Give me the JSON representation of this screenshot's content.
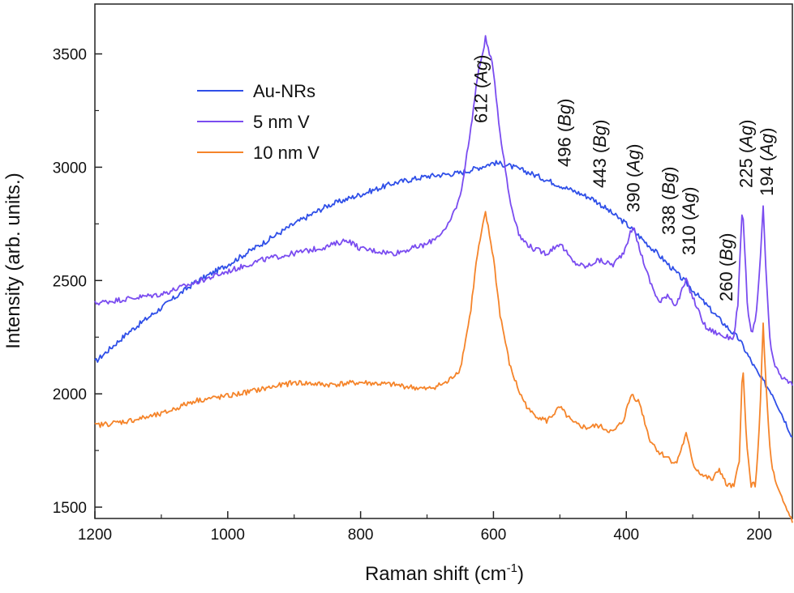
{
  "chart_data": {
    "type": "line",
    "xlabel_main": "Raman shift (cm",
    "xlabel_sup": "-1",
    "xlabel_tail": ")",
    "ylabel": "Intensity (arb. units.)",
    "xlim": [
      1200,
      150
    ],
    "ylim": [
      1450,
      3720
    ],
    "x_ticks": [
      1200,
      1000,
      800,
      600,
      400,
      200
    ],
    "x_tick_labels": [
      "1200",
      "1000",
      "800",
      "600",
      "400",
      "200"
    ],
    "y_ticks": [
      1500,
      2000,
      2500,
      3000,
      3500
    ],
    "y_tick_labels": [
      "1500",
      "2000",
      "2500",
      "3000",
      "3500"
    ],
    "legend_position": "top-left",
    "series": [
      {
        "name": "Au-NRs",
        "color": "#2f4fe8",
        "points": [
          [
            1200,
            2140
          ],
          [
            1150,
            2270
          ],
          [
            1100,
            2380
          ],
          [
            1050,
            2490
          ],
          [
            1000,
            2570
          ],
          [
            950,
            2660
          ],
          [
            900,
            2750
          ],
          [
            850,
            2830
          ],
          [
            800,
            2880
          ],
          [
            750,
            2930
          ],
          [
            700,
            2960
          ],
          [
            650,
            2975
          ],
          [
            620,
            3000
          ],
          [
            600,
            3020
          ],
          [
            580,
            3010
          ],
          [
            550,
            2980
          ],
          [
            500,
            2920
          ],
          [
            450,
            2860
          ],
          [
            400,
            2750
          ],
          [
            350,
            2610
          ],
          [
            310,
            2490
          ],
          [
            260,
            2330
          ],
          [
            230,
            2240
          ],
          [
            200,
            2080
          ],
          [
            180,
            2000
          ],
          [
            150,
            1810
          ]
        ]
      },
      {
        "name": "5 nm V",
        "color": "#7a4cf0",
        "points": [
          [
            1200,
            2400
          ],
          [
            1100,
            2440
          ],
          [
            1000,
            2540
          ],
          [
            950,
            2590
          ],
          [
            900,
            2620
          ],
          [
            850,
            2650
          ],
          [
            820,
            2680
          ],
          [
            800,
            2640
          ],
          [
            750,
            2620
          ],
          [
            700,
            2660
          ],
          [
            670,
            2730
          ],
          [
            650,
            2870
          ],
          [
            635,
            3150
          ],
          [
            625,
            3380
          ],
          [
            612,
            3570
          ],
          [
            600,
            3430
          ],
          [
            590,
            3150
          ],
          [
            575,
            2850
          ],
          [
            560,
            2690
          ],
          [
            540,
            2640
          ],
          [
            520,
            2620
          ],
          [
            500,
            2665
          ],
          [
            480,
            2580
          ],
          [
            460,
            2560
          ],
          [
            443,
            2590
          ],
          [
            420,
            2570
          ],
          [
            405,
            2620
          ],
          [
            390,
            2740
          ],
          [
            380,
            2640
          ],
          [
            365,
            2500
          ],
          [
            350,
            2400
          ],
          [
            338,
            2440
          ],
          [
            325,
            2390
          ],
          [
            310,
            2500
          ],
          [
            295,
            2390
          ],
          [
            280,
            2290
          ],
          [
            265,
            2270
          ],
          [
            250,
            2250
          ],
          [
            238,
            2250
          ],
          [
            232,
            2400
          ],
          [
            225,
            2840
          ],
          [
            218,
            2400
          ],
          [
            212,
            2270
          ],
          [
            205,
            2320
          ],
          [
            198,
            2600
          ],
          [
            194,
            2820
          ],
          [
            189,
            2500
          ],
          [
            183,
            2200
          ],
          [
            175,
            2110
          ],
          [
            165,
            2070
          ],
          [
            150,
            2040
          ]
        ]
      },
      {
        "name": "10 nm V",
        "color": "#f5842a",
        "points": [
          [
            1200,
            1860
          ],
          [
            1150,
            1880
          ],
          [
            1100,
            1910
          ],
          [
            1050,
            1970
          ],
          [
            1000,
            1990
          ],
          [
            950,
            2020
          ],
          [
            900,
            2050
          ],
          [
            850,
            2040
          ],
          [
            800,
            2050
          ],
          [
            750,
            2040
          ],
          [
            700,
            2020
          ],
          [
            670,
            2050
          ],
          [
            650,
            2110
          ],
          [
            635,
            2350
          ],
          [
            625,
            2600
          ],
          [
            612,
            2800
          ],
          [
            600,
            2600
          ],
          [
            590,
            2350
          ],
          [
            575,
            2120
          ],
          [
            560,
            2000
          ],
          [
            545,
            1920
          ],
          [
            520,
            1880
          ],
          [
            500,
            1940
          ],
          [
            480,
            1870
          ],
          [
            460,
            1850
          ],
          [
            443,
            1860
          ],
          [
            420,
            1830
          ],
          [
            405,
            1880
          ],
          [
            392,
            2000
          ],
          [
            380,
            1960
          ],
          [
            365,
            1800
          ],
          [
            350,
            1740
          ],
          [
            338,
            1720
          ],
          [
            325,
            1690
          ],
          [
            310,
            1820
          ],
          [
            298,
            1680
          ],
          [
            285,
            1640
          ],
          [
            270,
            1620
          ],
          [
            260,
            1670
          ],
          [
            250,
            1600
          ],
          [
            238,
            1590
          ],
          [
            230,
            1700
          ],
          [
            225,
            2150
          ],
          [
            219,
            1780
          ],
          [
            212,
            1600
          ],
          [
            205,
            1600
          ],
          [
            199,
            1900
          ],
          [
            194,
            2300
          ],
          [
            189,
            2000
          ],
          [
            183,
            1720
          ],
          [
            175,
            1600
          ],
          [
            165,
            1530
          ],
          [
            150,
            1440
          ]
        ]
      }
    ],
    "annotations": [
      {
        "text": "612 (",
        "mode": "Ag",
        "x": 612
      },
      {
        "text": "496 (",
        "mode": "Bg",
        "x": 496
      },
      {
        "text": "443 (",
        "mode": "Bg",
        "x": 443
      },
      {
        "text": "390 (",
        "mode": "Ag",
        "x": 390
      },
      {
        "text": "338 (",
        "mode": "Bg",
        "x": 338
      },
      {
        "text": "310 (",
        "mode": "Ag",
        "x": 310
      },
      {
        "text": "260 (",
        "mode": "Bg",
        "x": 260
      },
      {
        "text": "225 (",
        "mode": "Ag",
        "x": 225
      },
      {
        "text": "194 (",
        "mode": "Ag",
        "x": 194
      }
    ]
  }
}
